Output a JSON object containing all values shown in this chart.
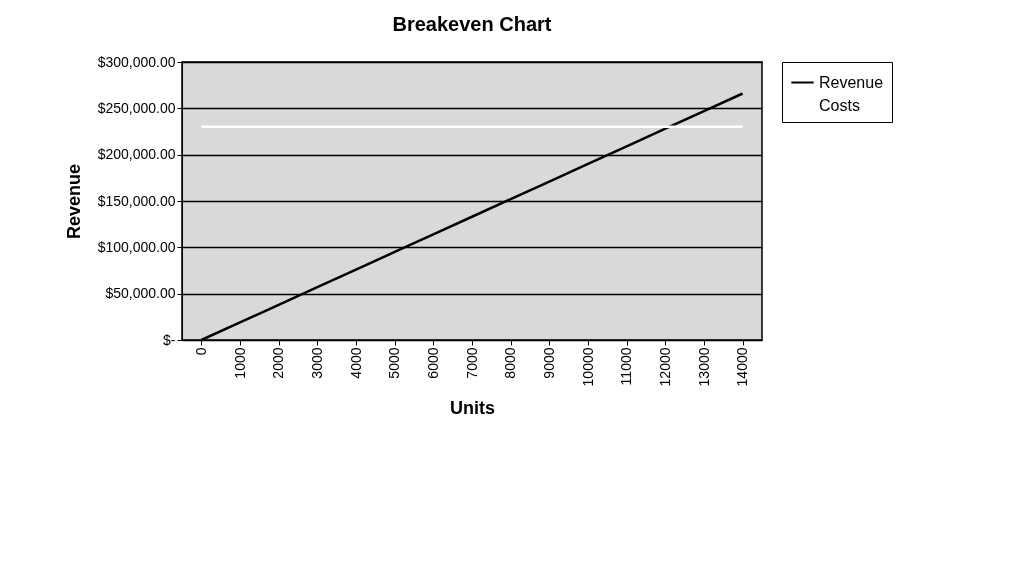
{
  "chart_data": {
    "type": "line",
    "title": "Breakeven Chart",
    "xlabel": "Units",
    "ylabel": "Revenue",
    "categories": [
      "0",
      "1000",
      "2000",
      "3000",
      "4000",
      "5000",
      "6000",
      "7000",
      "8000",
      "9000",
      "10000",
      "11000",
      "12000",
      "13000",
      "14000"
    ],
    "series": [
      {
        "name": "Revenue",
        "color": "#000000",
        "values": [
          0,
          19000,
          38000,
          57000,
          76000,
          95000,
          114000,
          133000,
          152000,
          171000,
          190000,
          209000,
          228000,
          247000,
          266000
        ]
      },
      {
        "name": "Costs",
        "color": "#ffffff",
        "values": [
          230000,
          230000,
          230000,
          230000,
          230000,
          230000,
          230000,
          230000,
          230000,
          230000,
          230000,
          230000,
          230000,
          230000,
          230000
        ]
      }
    ],
    "ylim": [
      0,
      300000
    ],
    "yticks": [
      {
        "value": 0,
        "label": "$-"
      },
      {
        "value": 50000,
        "label": "$50,000.00"
      },
      {
        "value": 100000,
        "label": "$100,000.00"
      },
      {
        "value": 150000,
        "label": "$150,000.00"
      },
      {
        "value": 200000,
        "label": "$200,000.00"
      },
      {
        "value": 250000,
        "label": "$250,000.00"
      },
      {
        "value": 300000,
        "label": "$300,000.00"
      }
    ],
    "grid": "y",
    "legend": "right",
    "marker": "none",
    "line_style": "solid"
  }
}
